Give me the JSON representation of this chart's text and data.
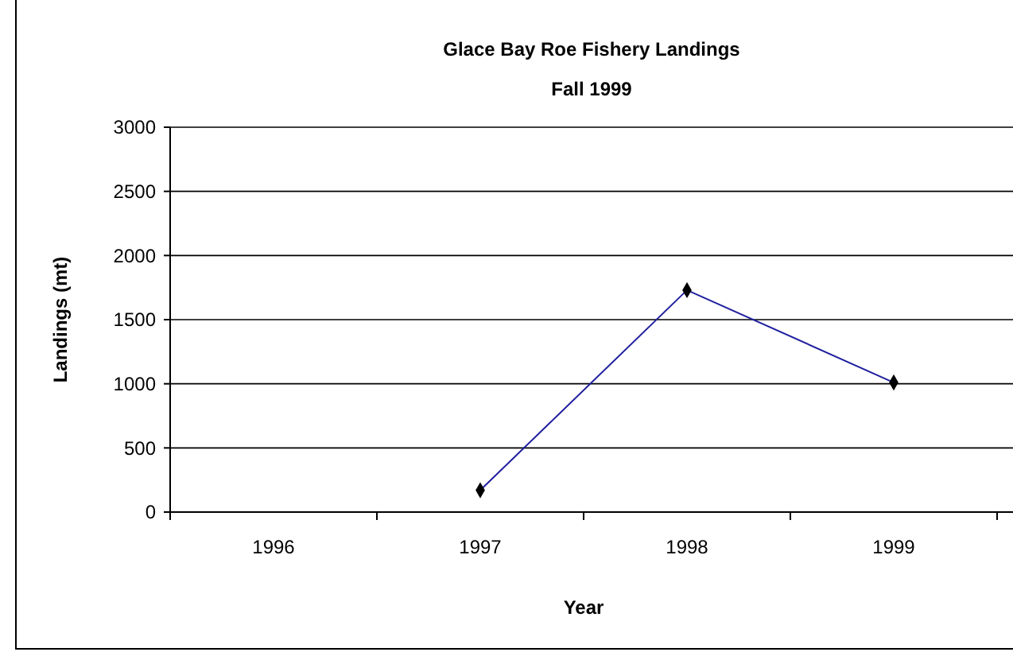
{
  "chart_data": {
    "type": "line",
    "title": "Glace Bay Roe Fishery Landings",
    "subtitle": "Fall 1999",
    "xlabel": "Year",
    "ylabel": "Landings (mt)",
    "categories": [
      "1996",
      "1997",
      "1998",
      "1999"
    ],
    "series": [
      {
        "color": "#1f1f9f",
        "values": [
          null,
          170,
          1730,
          1010
        ]
      }
    ],
    "ylim": [
      0,
      3000
    ],
    "yticks": [
      0,
      500,
      1000,
      1500,
      2000,
      2500,
      3000
    ],
    "grid": "y",
    "marker": "diamond"
  }
}
